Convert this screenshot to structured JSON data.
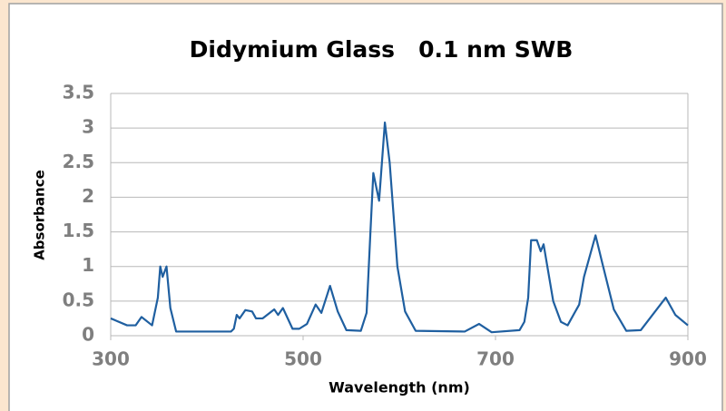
{
  "chart_data": {
    "type": "line",
    "title": "Didymium Glass   0.1 nm SWB",
    "xlabel": "Wavelength (nm)",
    "ylabel": "Absorbance",
    "x": [
      300,
      317,
      326,
      332,
      343,
      349,
      351.5,
      354,
      358,
      362,
      368,
      425,
      428,
      431,
      434,
      440,
      447,
      451,
      458,
      470,
      474,
      479,
      489,
      496,
      504,
      513,
      519,
      528,
      536,
      545,
      560,
      566,
      570,
      573,
      579,
      585,
      590,
      598,
      606,
      617,
      668,
      683,
      696,
      725,
      730,
      734,
      737,
      743,
      747,
      750,
      760,
      768,
      775,
      787,
      792,
      804,
      811,
      823,
      836,
      851,
      877,
      887,
      900
    ],
    "series": [
      {
        "name": "Absorbance",
        "color": "#1f5fa0",
        "values": [
          0.25,
          0.15,
          0.15,
          0.27,
          0.15,
          0.55,
          1.0,
          0.85,
          1.0,
          0.4,
          0.06,
          0.06,
          0.1,
          0.3,
          0.25,
          0.37,
          0.35,
          0.25,
          0.25,
          0.38,
          0.3,
          0.4,
          0.1,
          0.1,
          0.17,
          0.45,
          0.33,
          0.72,
          0.35,
          0.08,
          0.07,
          0.33,
          1.5,
          2.35,
          1.95,
          3.08,
          2.5,
          1.0,
          0.35,
          0.07,
          0.06,
          0.17,
          0.05,
          0.08,
          0.2,
          0.55,
          1.38,
          1.38,
          1.22,
          1.32,
          0.5,
          0.2,
          0.15,
          0.45,
          0.85,
          1.45,
          1.05,
          0.38,
          0.07,
          0.08,
          0.55,
          0.3,
          0.15
        ]
      }
    ],
    "xlim": [
      300,
      900
    ],
    "xticks": [
      300,
      500,
      700,
      900
    ],
    "ylim": [
      0,
      3.5
    ],
    "yticks": [
      0,
      0.5,
      1,
      1.5,
      2,
      2.5,
      3,
      3.5
    ],
    "grid": true
  }
}
